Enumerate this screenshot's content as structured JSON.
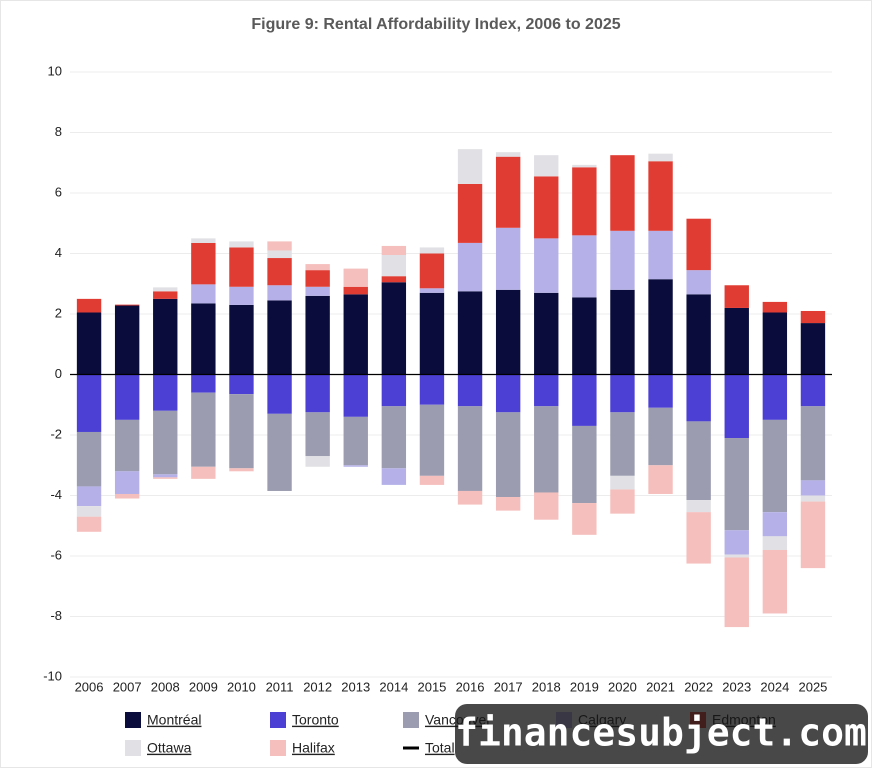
{
  "chart_data": {
    "type": "bar",
    "stacked": true,
    "title": "Figure 9: Rental Affordability Index, 2006 to 2025",
    "categories": [
      "2006",
      "2007",
      "2008",
      "2009",
      "2010",
      "2011",
      "2012",
      "2013",
      "2014",
      "2015",
      "2016",
      "2017",
      "2018",
      "2019",
      "2020",
      "2021",
      "2022",
      "2023",
      "2024",
      "2025"
    ],
    "ylim": [
      -10,
      10
    ],
    "yticks": [
      -10,
      -8,
      -6,
      -4,
      -2,
      0,
      2,
      4,
      6,
      8,
      10
    ],
    "grid": true,
    "series": [
      {
        "name": "Montréal",
        "color": "#0a0c3c",
        "values": [
          2.05,
          2.28,
          2.5,
          2.35,
          2.3,
          2.45,
          2.6,
          2.65,
          3.05,
          2.7,
          2.75,
          2.8,
          2.7,
          2.55,
          2.8,
          3.15,
          2.65,
          2.2,
          2.05,
          1.7
        ]
      },
      {
        "name": "Toronto",
        "color": "#4b3fd4",
        "values": [
          -1.9,
          -1.5,
          -1.2,
          -0.6,
          -0.65,
          -1.3,
          -1.25,
          -1.4,
          -1.05,
          -1.0,
          -1.05,
          -1.25,
          -1.05,
          -1.7,
          -1.25,
          -1.1,
          -1.55,
          -2.1,
          -1.5,
          -1.05
        ]
      },
      {
        "name": "Vancouver",
        "color": "#9b9cb0",
        "values": [
          -1.8,
          -1.7,
          -2.1,
          -2.45,
          -2.45,
          -2.55,
          -1.45,
          -1.6,
          -2.05,
          -2.35,
          -2.8,
          -2.8,
          -2.85,
          -2.55,
          -2.1,
          -1.9,
          -2.6,
          -3.05,
          -3.05,
          -2.45
        ]
      },
      {
        "name": "Calgary",
        "color": "#b5b1e8",
        "values": [
          -0.65,
          -0.75,
          -0.1,
          0.63,
          0.6,
          0.5,
          0.3,
          -0.05,
          -0.55,
          0.15,
          1.6,
          2.05,
          1.8,
          2.05,
          1.95,
          1.6,
          0.8,
          -0.8,
          -0.8,
          -0.5
        ]
      },
      {
        "name": "Edmonton",
        "color": "#e03c33",
        "values": [
          0.45,
          0.03,
          0.25,
          1.37,
          1.3,
          0.9,
          0.55,
          0.25,
          0.2,
          1.15,
          1.95,
          2.35,
          2.05,
          2.25,
          2.5,
          2.3,
          1.7,
          0.75,
          0.35,
          0.4
        ]
      },
      {
        "name": "Ottawa",
        "color": "#e1e1e5",
        "values": [
          -0.35,
          0,
          0.13,
          0.15,
          0.2,
          0.25,
          -0.35,
          0,
          0.7,
          0.2,
          1.15,
          0.15,
          0.7,
          0.08,
          -0.45,
          0.25,
          -0.4,
          -0.1,
          -0.45,
          -0.2
        ]
      },
      {
        "name": "Halifax",
        "color": "#f5bfbd",
        "values": [
          -0.5,
          -0.15,
          -0.05,
          -0.4,
          -0.1,
          0.3,
          0.2,
          0.6,
          0.3,
          -0.3,
          -0.45,
          -0.45,
          -0.9,
          -1.05,
          -0.8,
          -0.95,
          -1.7,
          -2.3,
          -2.1,
          -2.2
        ]
      }
    ],
    "total_legend": {
      "name": "Total",
      "color": "#000000"
    },
    "watermark": "financesubject.com"
  }
}
